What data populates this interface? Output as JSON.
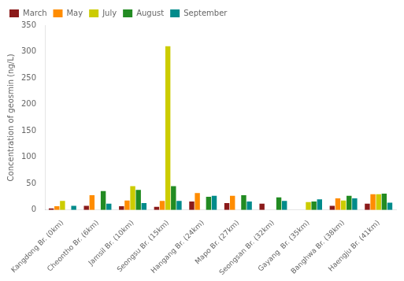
{
  "chart_data": {
    "type": "bar",
    "categories": [
      "Kangdong Br. (0km)",
      "Cheontho Br. (6km)",
      "Jamsil Br. (10km)",
      "Seongsu Br. (15km)",
      "Hangang Br. (24km)",
      "Mapo Br. (27km)",
      "Seongsan Br. (32km)",
      "Gayang  Br. (35km)",
      "Banghwa Br. (38km)",
      "Haengju Br. (41km)"
    ],
    "series": [
      {
        "name": "March",
        "color": "#8B1A1A",
        "values": [
          3,
          8,
          7,
          6,
          16,
          13,
          12,
          0,
          8,
          12
        ]
      },
      {
        "name": "May",
        "color": "#FF8C00",
        "values": [
          7,
          28,
          18,
          17,
          32,
          27,
          0,
          0,
          22,
          30
        ]
      },
      {
        "name": "July",
        "color": "#CCCC00",
        "values": [
          17,
          0,
          45,
          310,
          0,
          0,
          0,
          15,
          18,
          30
        ]
      },
      {
        "name": "August",
        "color": "#228B22",
        "values": [
          0,
          36,
          38,
          45,
          25,
          28,
          24,
          16,
          27,
          31
        ]
      },
      {
        "name": "September",
        "color": "#008B8B",
        "values": [
          8,
          12,
          13,
          17,
          27,
          16,
          17,
          20,
          22,
          14
        ]
      }
    ],
    "ylabel": "Concentration of geosmin (ng/L)",
    "ylim": [
      0,
      350
    ],
    "yticks": [
      0,
      50,
      100,
      150,
      200,
      250,
      300,
      350
    ],
    "grid": false,
    "legend": "upper left"
  }
}
